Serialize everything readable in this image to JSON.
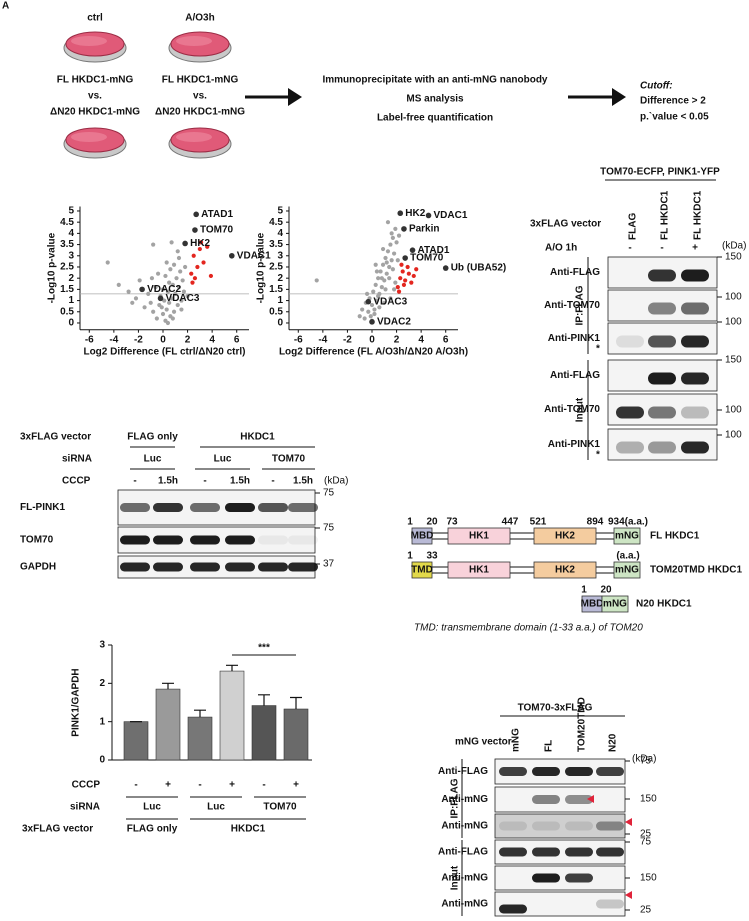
{
  "panel_label": "A",
  "workflow": {
    "conditions": [
      {
        "label": "ctrl",
        "lines": [
          "FL HKDC1-mNG",
          "vs.",
          "ΔN20 HKDC1-mNG"
        ]
      },
      {
        "label": "A/O3h",
        "lines": [
          "FL HKDC1-mNG",
          "vs.",
          "ΔN20 HKDC1-mNG"
        ]
      }
    ],
    "steps": [
      "Immunoprecipitate with an anti-mNG nanobody",
      "MS analysis",
      "Label-free quantification"
    ],
    "cutoff_title": "Cutoff:",
    "cutoff_lines": [
      "Difference > 2",
      "p.`value < 0.05"
    ]
  },
  "chart_data": [
    {
      "type": "scatter",
      "xlabel": "Log2 Difference (FL ctrl/ΔN20 ctrl)",
      "ylabel": "-Log10 p-value",
      "xlim": [
        -7,
        7
      ],
      "ylim": [
        -0.3,
        5.2
      ],
      "xticks": [
        -6,
        -4,
        -2,
        0,
        2,
        4,
        6
      ],
      "yticks": [
        0,
        0.5,
        1,
        1.5,
        2,
        2.5,
        3,
        3.5,
        4,
        4.5,
        5
      ],
      "threshold": 1.3,
      "series": [
        {
          "color": "#a3a3a3",
          "x": [
            -4.5,
            -3.6,
            -2.8,
            -2.2,
            -1.9,
            -1.5,
            -1.2,
            -1.0,
            -0.8,
            -0.6,
            -0.5,
            -0.3,
            -0.2,
            0,
            0.1,
            0.2,
            0.3,
            0.4,
            0.5,
            0.6,
            0.7,
            0.8,
            0.9,
            1.0,
            1.1,
            1.2,
            1.3,
            1.4,
            1.5,
            1.6,
            1.8,
            0.2,
            0.5,
            0.9,
            1.3,
            -0.4,
            0.0,
            0.6,
            -0.8,
            1.7,
            -0.9,
            0.4,
            1.5,
            0.8,
            2.0,
            -2.5,
            1.2,
            0.3,
            -0.1,
            0.7
          ],
          "y": [
            2.7,
            1.7,
            1.4,
            1.1,
            1.9,
            0.7,
            1.3,
            0.9,
            0.5,
            1.6,
            0.2,
            0.8,
            1.2,
            0.4,
            1.0,
            0.1,
            0.6,
            1.4,
            0.9,
            0.3,
            1.1,
            1.7,
            0.5,
            1.3,
            2.0,
            0.8,
            1.6,
            2.3,
            1.0,
            1.9,
            2.5,
            2.1,
            1.8,
            2.6,
            2.9,
            2.2,
            1.5,
            2.4,
            3.5,
            1.4,
            2.0,
            0.0,
            0.6,
            0.2,
            1.2,
            0.9,
            3.2,
            2.7,
            0.7,
            3.6
          ]
        },
        {
          "color": "#e3261f",
          "x": [
            2.3,
            2.5,
            2.8,
            3.0,
            3.3,
            3.6,
            2.6,
            3.9,
            2.4,
            3.1
          ],
          "y": [
            2.2,
            3.0,
            2.5,
            3.3,
            2.7,
            3.4,
            2.0,
            2.1,
            1.8,
            3.6
          ]
        }
      ],
      "labeled_points": [
        {
          "label": "ATAD1",
          "x": 2.7,
          "y": 4.85
        },
        {
          "label": "TOM70",
          "x": 2.6,
          "y": 4.15
        },
        {
          "label": "HK2",
          "x": 1.8,
          "y": 3.55
        },
        {
          "label": "VDAC1",
          "x": 5.6,
          "y": 3.0
        },
        {
          "label": "VDAC2",
          "x": -1.7,
          "y": 1.5
        },
        {
          "label": "VDAC3",
          "x": -0.2,
          "y": 1.1
        }
      ]
    },
    {
      "type": "scatter",
      "xlabel": "Log2 Difference (FL A/O3h/ΔN20 A/O3h)",
      "ylabel": "-Log10 p-value",
      "xlim": [
        -7,
        7
      ],
      "ylim": [
        -0.3,
        5.2
      ],
      "xticks": [
        -6,
        -4,
        -2,
        0,
        2,
        4,
        6
      ],
      "yticks": [
        0,
        0.5,
        1,
        1.5,
        2,
        2.5,
        3,
        3.5,
        4,
        4.5,
        5
      ],
      "threshold": 1.3,
      "series": [
        {
          "color": "#a3a3a3",
          "x": [
            -1.0,
            -0.8,
            -0.6,
            -0.5,
            -0.3,
            -0.2,
            0,
            0.1,
            0.2,
            0.3,
            0.4,
            0.5,
            0.6,
            0.7,
            0.8,
            0.9,
            1.0,
            1.1,
            1.2,
            1.3,
            1.4,
            1.5,
            1.6,
            1.7,
            1.8,
            1.9,
            -0.4,
            0.2,
            0.5,
            0.8,
            1.1,
            1.4,
            1.7,
            2.0,
            0.3,
            0.9,
            1.3,
            1.6,
            2.2,
            -4.5,
            1.0,
            0.6,
            1.5,
            1.8,
            0.0,
            -0.1,
            0.4,
            1.2,
            1.9,
            2.1
          ],
          "y": [
            0.3,
            0.6,
            0.2,
            0.9,
            0.5,
            1.1,
            0.8,
            1.4,
            0.4,
            1.7,
            1.0,
            2.0,
            1.3,
            2.3,
            1.6,
            2.6,
            1.9,
            2.9,
            2.2,
            3.2,
            2.5,
            3.5,
            2.8,
            3.8,
            3.1,
            4.2,
            1.3,
            0.6,
            1.2,
            2.0,
            1.5,
            2.0,
            2.4,
            3.6,
            2.6,
            3.3,
            4.5,
            4.0,
            3.9,
            1.9,
            0.9,
            0.7,
            1.1,
            1.5,
            0.1,
            0.3,
            2.3,
            2.7,
            1.8,
            2.8
          ]
        },
        {
          "color": "#e3261f",
          "x": [
            2.1,
            2.3,
            2.5,
            2.7,
            3.0,
            3.2,
            2.4,
            2.9,
            3.4,
            2.2,
            2.6,
            3.6
          ],
          "y": [
            1.6,
            2.0,
            2.3,
            1.9,
            2.2,
            1.8,
            2.6,
            2.5,
            2.1,
            1.4,
            1.7,
            2.4
          ]
        }
      ],
      "labeled_points": [
        {
          "label": "HK2",
          "x": 2.3,
          "y": 4.9
        },
        {
          "label": "VDAC1",
          "x": 4.6,
          "y": 4.8
        },
        {
          "label": "Parkin",
          "x": 2.6,
          "y": 4.2
        },
        {
          "label": "ATAD1",
          "x": 3.3,
          "y": 3.25
        },
        {
          "label": "TOM70",
          "x": 2.7,
          "y": 2.9
        },
        {
          "label": "Ub (UBA52)",
          "x": 6.0,
          "y": 2.45
        },
        {
          "label": "VDAC3",
          "x": -0.3,
          "y": 0.95
        },
        {
          "label": "VDAC2",
          "x": 0,
          "y": 0.05
        }
      ]
    },
    {
      "type": "bar",
      "ylabel": "PINK1/GAPDH",
      "ylim": [
        0,
        3
      ],
      "yticks": [
        0,
        1,
        2,
        3
      ],
      "values": [
        1,
        1.85,
        1.12,
        2.32,
        1.42,
        1.33
      ],
      "errors": [
        0,
        0.15,
        0.18,
        0.15,
        0.28,
        0.3
      ],
      "colors": [
        "#6f6f6f",
        "#9a9a9a",
        "#777777",
        "#d0d0d0",
        "#555555",
        "#6a6a6a"
      ],
      "significance": "***",
      "cccp_label": "CCCP",
      "cccp": [
        "-",
        "+",
        "-",
        "+",
        "-",
        "+"
      ],
      "sirna_label": "siRNA",
      "sirna": [
        "Luc",
        "Luc",
        "TOM70"
      ],
      "vector_label": "3xFLAG vector",
      "vector": [
        "FLAG only",
        "HKDC1"
      ]
    }
  ],
  "blot_endogenous": {
    "title": "TOM70-ECFP, PINK1-YFP",
    "vector_label": "3xFLAG vector",
    "lanes": [
      "FLAG",
      "FL HKDC1",
      "FL HKDC1"
    ],
    "treatment_label": "A/O 1h",
    "treatment": [
      "-",
      "-",
      "+"
    ],
    "kda": "(kDa)",
    "groups": [
      {
        "label": "IP:FLAG",
        "rows": [
          {
            "label": "Anti-FLAG",
            "marker": 150
          },
          {
            "label": "Anti-TOM70",
            "marker": 100
          },
          {
            "label": "Anti-PINK1",
            "marker": 100,
            "asterisk": "*"
          }
        ]
      },
      {
        "label": "Input",
        "rows": [
          {
            "label": "Anti-FLAG",
            "marker": 150
          },
          {
            "label": "Anti-TOM70",
            "marker": 100
          },
          {
            "label": "Anti-PINK1",
            "marker": 100,
            "asterisk": "*"
          }
        ]
      }
    ]
  },
  "blot_knockdown": {
    "vector_label": "3xFLAG vector",
    "vector": [
      "FLAG only",
      "HKDC1"
    ],
    "sirna_label": "siRNA",
    "sirna": [
      "Luc",
      "Luc",
      "TOM70"
    ],
    "cccp_label": "CCCP",
    "cccp": [
      "-",
      "1.5h",
      "-",
      "1.5h",
      "-",
      "1.5h"
    ],
    "kda": "(kDa)",
    "rows": [
      {
        "label": "FL-PINK1",
        "marker": 75
      },
      {
        "label": "TOM70",
        "marker": 75
      },
      {
        "label": "GAPDH",
        "marker": 37
      }
    ]
  },
  "schematic": {
    "constructs": [
      {
        "name": "FL HKDC1",
        "positions": [
          1,
          20,
          73,
          447,
          521,
          894,
          "934(a.a.)"
        ],
        "domains": [
          "MBD",
          "HK1",
          "HK2",
          "mNG"
        ]
      },
      {
        "name": "TOM20TMD HKDC1",
        "positions": [
          1,
          33,
          "(a.a.)"
        ],
        "domains": [
          "TMD",
          "HK1",
          "HK2",
          "mNG"
        ]
      },
      {
        "name": "N20 HKDC1",
        "positions": [
          1,
          20
        ],
        "domains": [
          "MBD",
          "mNG"
        ]
      }
    ],
    "note": "TMD: transmembrane domain (1-33 a.a.) of TOM20"
  },
  "blot_mng": {
    "title": "TOM70-3xFLAG",
    "vector_label": "mNG vector",
    "lanes": [
      "mNG",
      "FL",
      "TOM20TMD",
      "N20"
    ],
    "kda": "(kDa)",
    "groups": [
      {
        "label": "IP:FLAG",
        "rows": [
          {
            "label": "Anti-FLAG",
            "marker": 75
          },
          {
            "label": "Anti-mNG",
            "marker": 150
          },
          {
            "label": "Anti-mNG",
            "marker": 25
          }
        ]
      },
      {
        "label": "Input",
        "rows": [
          {
            "label": "Anti-FLAG",
            "marker": 75
          },
          {
            "label": "Anti-mNG",
            "marker": 150
          },
          {
            "label": "Anti-mNG",
            "marker": 25
          }
        ]
      }
    ]
  }
}
